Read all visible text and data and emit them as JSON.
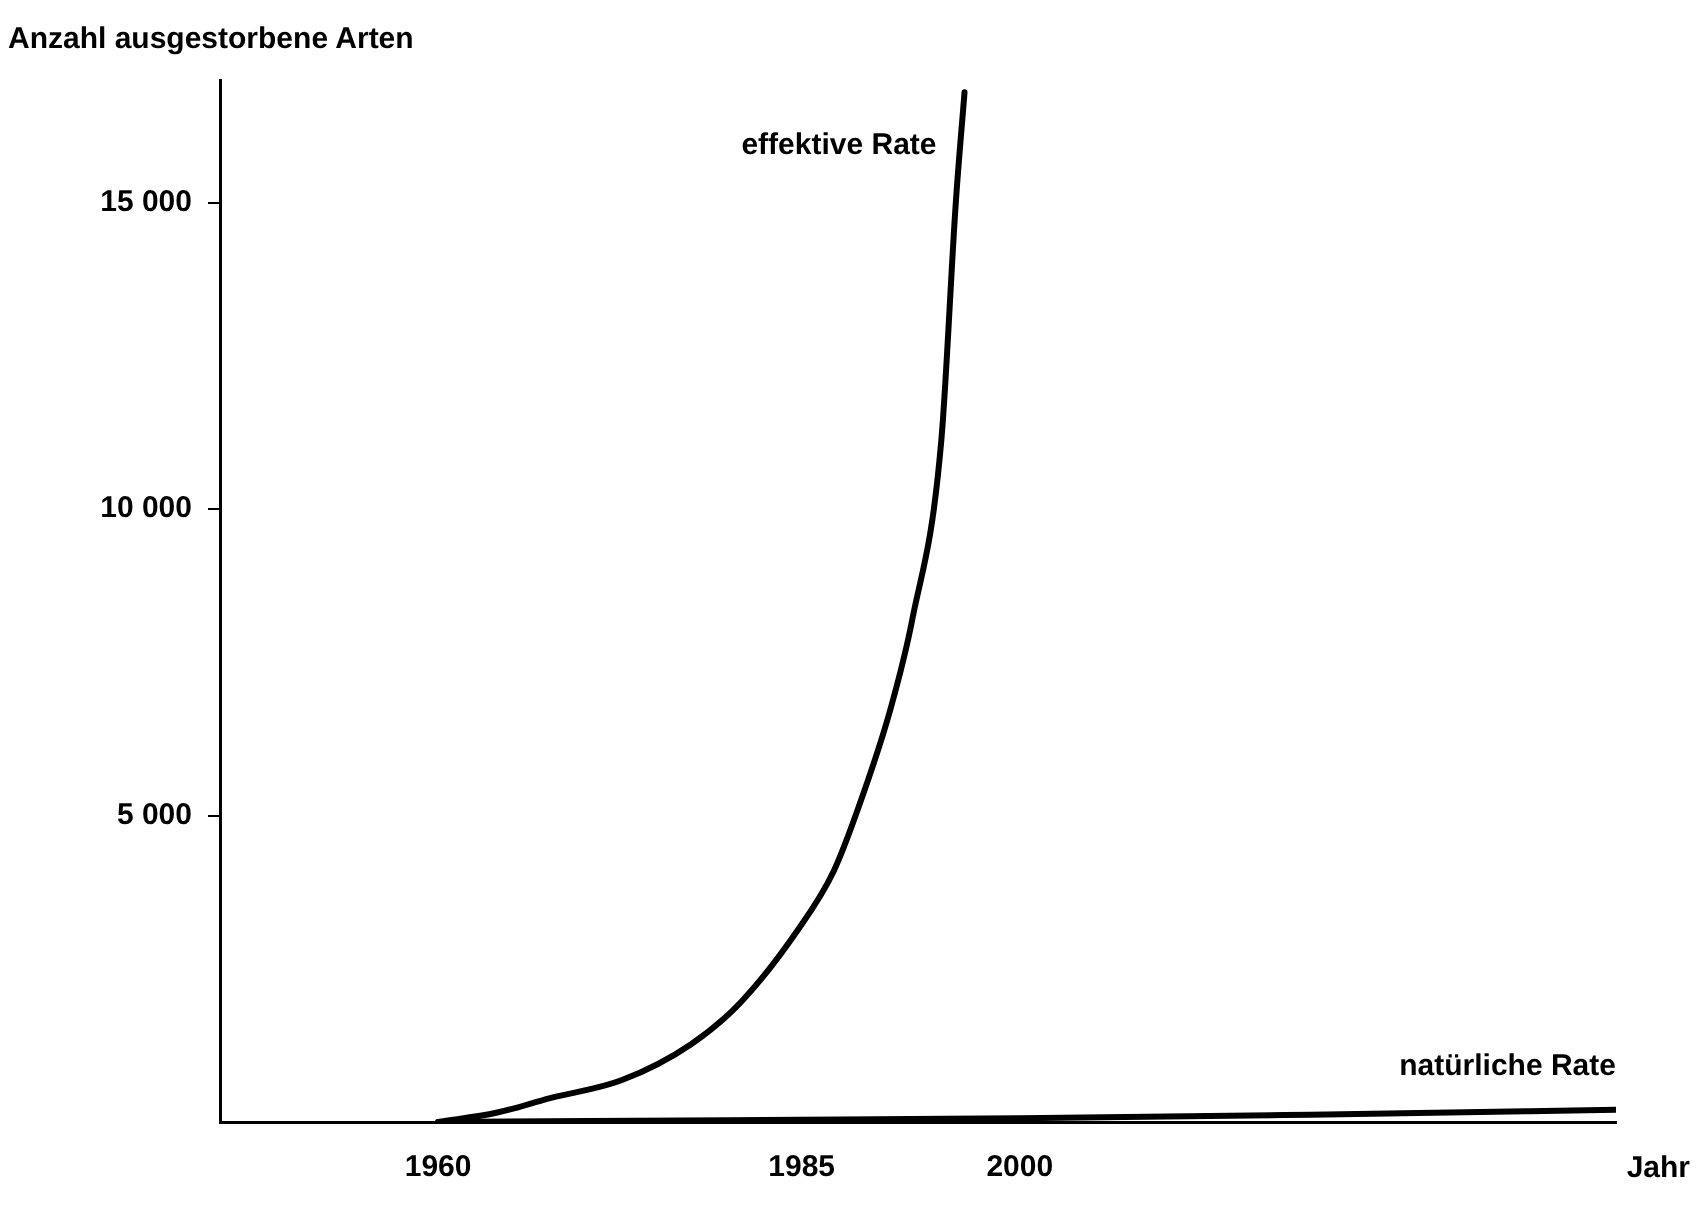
{
  "chart_data": {
    "type": "line",
    "ylabel": "Anzahl ausgestorbene Arten",
    "xlabel": "Jahr",
    "xlim": [
      1945,
      2041
    ],
    "xticks": [
      1960,
      1985,
      2000
    ],
    "ylim": [
      0,
      17000
    ],
    "yticks": [
      {
        "value": 5000,
        "label": "5 000"
      },
      {
        "value": 10000,
        "label": "10 000"
      },
      {
        "value": 15000,
        "label": "15 000"
      }
    ],
    "grid": false,
    "legend": false,
    "marker": "none",
    "line_style": "solid",
    "series": [
      {
        "name": "effektive Rate",
        "color": "#000000",
        "x": [
          1960,
          1964,
          1967.7,
          1972.6,
          1977.4,
          1980.8,
          1984.7,
          1987.2,
          1989.1,
          1991.1,
          1992.6,
          1994.6,
          1995.6,
          1996.2
        ],
        "values": [
          0,
          150,
          390,
          680,
          1270,
          1950,
          3120,
          4090,
          5260,
          6730,
          8190,
          11110,
          15000,
          16800
        ]
      },
      {
        "name": "natürliche Rate",
        "color": "#000000",
        "x": [
          1960,
          1980,
          2000,
          2020,
          2041
        ],
        "values": [
          0,
          30,
          60,
          120,
          200
        ]
      }
    ]
  }
}
